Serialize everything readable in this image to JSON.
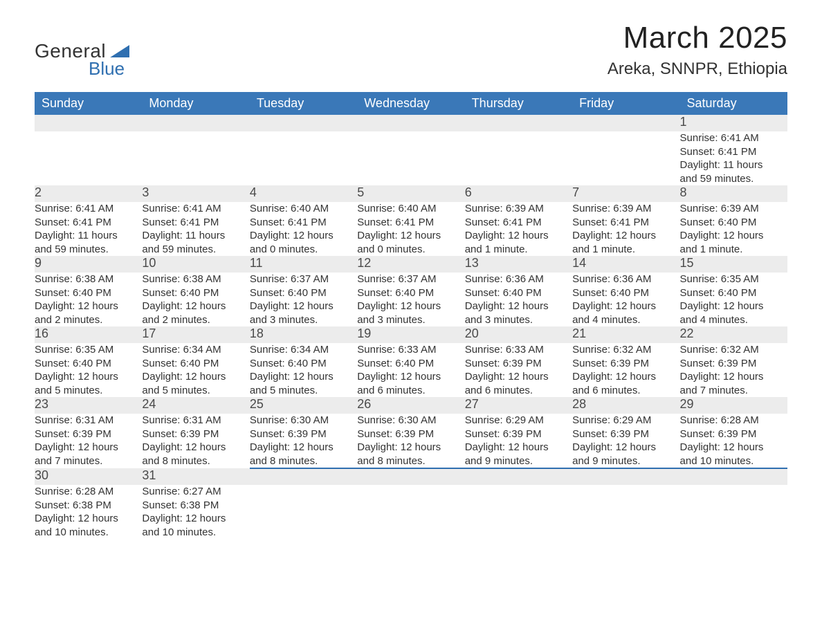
{
  "logo": {
    "text_general": "General",
    "text_blue": "Blue",
    "tri_color": "#2f6fb0"
  },
  "header": {
    "month_title": "March 2025",
    "location": "Areka, SNNPR, Ethiopia"
  },
  "colors": {
    "header_bg": "#3a78b8",
    "header_text": "#ffffff",
    "daynum_bg": "#ececec",
    "row_border": "#2f6fb0",
    "body_text": "#333333",
    "page_bg": "#ffffff"
  },
  "typography": {
    "month_title_fontsize": 44,
    "location_fontsize": 24,
    "weekday_fontsize": 18,
    "daynum_fontsize": 18,
    "detail_fontsize": 15
  },
  "weekdays": [
    "Sunday",
    "Monday",
    "Tuesday",
    "Wednesday",
    "Thursday",
    "Friday",
    "Saturday"
  ],
  "weeks": [
    [
      null,
      null,
      null,
      null,
      null,
      null,
      {
        "day": "1",
        "sunrise": "Sunrise: 6:41 AM",
        "sunset": "Sunset: 6:41 PM",
        "daylight1": "Daylight: 11 hours",
        "daylight2": "and 59 minutes."
      }
    ],
    [
      {
        "day": "2",
        "sunrise": "Sunrise: 6:41 AM",
        "sunset": "Sunset: 6:41 PM",
        "daylight1": "Daylight: 11 hours",
        "daylight2": "and 59 minutes."
      },
      {
        "day": "3",
        "sunrise": "Sunrise: 6:41 AM",
        "sunset": "Sunset: 6:41 PM",
        "daylight1": "Daylight: 11 hours",
        "daylight2": "and 59 minutes."
      },
      {
        "day": "4",
        "sunrise": "Sunrise: 6:40 AM",
        "sunset": "Sunset: 6:41 PM",
        "daylight1": "Daylight: 12 hours",
        "daylight2": "and 0 minutes."
      },
      {
        "day": "5",
        "sunrise": "Sunrise: 6:40 AM",
        "sunset": "Sunset: 6:41 PM",
        "daylight1": "Daylight: 12 hours",
        "daylight2": "and 0 minutes."
      },
      {
        "day": "6",
        "sunrise": "Sunrise: 6:39 AM",
        "sunset": "Sunset: 6:41 PM",
        "daylight1": "Daylight: 12 hours",
        "daylight2": "and 1 minute."
      },
      {
        "day": "7",
        "sunrise": "Sunrise: 6:39 AM",
        "sunset": "Sunset: 6:41 PM",
        "daylight1": "Daylight: 12 hours",
        "daylight2": "and 1 minute."
      },
      {
        "day": "8",
        "sunrise": "Sunrise: 6:39 AM",
        "sunset": "Sunset: 6:40 PM",
        "daylight1": "Daylight: 12 hours",
        "daylight2": "and 1 minute."
      }
    ],
    [
      {
        "day": "9",
        "sunrise": "Sunrise: 6:38 AM",
        "sunset": "Sunset: 6:40 PM",
        "daylight1": "Daylight: 12 hours",
        "daylight2": "and 2 minutes."
      },
      {
        "day": "10",
        "sunrise": "Sunrise: 6:38 AM",
        "sunset": "Sunset: 6:40 PM",
        "daylight1": "Daylight: 12 hours",
        "daylight2": "and 2 minutes."
      },
      {
        "day": "11",
        "sunrise": "Sunrise: 6:37 AM",
        "sunset": "Sunset: 6:40 PM",
        "daylight1": "Daylight: 12 hours",
        "daylight2": "and 3 minutes."
      },
      {
        "day": "12",
        "sunrise": "Sunrise: 6:37 AM",
        "sunset": "Sunset: 6:40 PM",
        "daylight1": "Daylight: 12 hours",
        "daylight2": "and 3 minutes."
      },
      {
        "day": "13",
        "sunrise": "Sunrise: 6:36 AM",
        "sunset": "Sunset: 6:40 PM",
        "daylight1": "Daylight: 12 hours",
        "daylight2": "and 3 minutes."
      },
      {
        "day": "14",
        "sunrise": "Sunrise: 6:36 AM",
        "sunset": "Sunset: 6:40 PM",
        "daylight1": "Daylight: 12 hours",
        "daylight2": "and 4 minutes."
      },
      {
        "day": "15",
        "sunrise": "Sunrise: 6:35 AM",
        "sunset": "Sunset: 6:40 PM",
        "daylight1": "Daylight: 12 hours",
        "daylight2": "and 4 minutes."
      }
    ],
    [
      {
        "day": "16",
        "sunrise": "Sunrise: 6:35 AM",
        "sunset": "Sunset: 6:40 PM",
        "daylight1": "Daylight: 12 hours",
        "daylight2": "and 5 minutes."
      },
      {
        "day": "17",
        "sunrise": "Sunrise: 6:34 AM",
        "sunset": "Sunset: 6:40 PM",
        "daylight1": "Daylight: 12 hours",
        "daylight2": "and 5 minutes."
      },
      {
        "day": "18",
        "sunrise": "Sunrise: 6:34 AM",
        "sunset": "Sunset: 6:40 PM",
        "daylight1": "Daylight: 12 hours",
        "daylight2": "and 5 minutes."
      },
      {
        "day": "19",
        "sunrise": "Sunrise: 6:33 AM",
        "sunset": "Sunset: 6:40 PM",
        "daylight1": "Daylight: 12 hours",
        "daylight2": "and 6 minutes."
      },
      {
        "day": "20",
        "sunrise": "Sunrise: 6:33 AM",
        "sunset": "Sunset: 6:39 PM",
        "daylight1": "Daylight: 12 hours",
        "daylight2": "and 6 minutes."
      },
      {
        "day": "21",
        "sunrise": "Sunrise: 6:32 AM",
        "sunset": "Sunset: 6:39 PM",
        "daylight1": "Daylight: 12 hours",
        "daylight2": "and 6 minutes."
      },
      {
        "day": "22",
        "sunrise": "Sunrise: 6:32 AM",
        "sunset": "Sunset: 6:39 PM",
        "daylight1": "Daylight: 12 hours",
        "daylight2": "and 7 minutes."
      }
    ],
    [
      {
        "day": "23",
        "sunrise": "Sunrise: 6:31 AM",
        "sunset": "Sunset: 6:39 PM",
        "daylight1": "Daylight: 12 hours",
        "daylight2": "and 7 minutes."
      },
      {
        "day": "24",
        "sunrise": "Sunrise: 6:31 AM",
        "sunset": "Sunset: 6:39 PM",
        "daylight1": "Daylight: 12 hours",
        "daylight2": "and 8 minutes."
      },
      {
        "day": "25",
        "sunrise": "Sunrise: 6:30 AM",
        "sunset": "Sunset: 6:39 PM",
        "daylight1": "Daylight: 12 hours",
        "daylight2": "and 8 minutes."
      },
      {
        "day": "26",
        "sunrise": "Sunrise: 6:30 AM",
        "sunset": "Sunset: 6:39 PM",
        "daylight1": "Daylight: 12 hours",
        "daylight2": "and 8 minutes."
      },
      {
        "day": "27",
        "sunrise": "Sunrise: 6:29 AM",
        "sunset": "Sunset: 6:39 PM",
        "daylight1": "Daylight: 12 hours",
        "daylight2": "and 9 minutes."
      },
      {
        "day": "28",
        "sunrise": "Sunrise: 6:29 AM",
        "sunset": "Sunset: 6:39 PM",
        "daylight1": "Daylight: 12 hours",
        "daylight2": "and 9 minutes."
      },
      {
        "day": "29",
        "sunrise": "Sunrise: 6:28 AM",
        "sunset": "Sunset: 6:39 PM",
        "daylight1": "Daylight: 12 hours",
        "daylight2": "and 10 minutes."
      }
    ],
    [
      {
        "day": "30",
        "sunrise": "Sunrise: 6:28 AM",
        "sunset": "Sunset: 6:38 PM",
        "daylight1": "Daylight: 12 hours",
        "daylight2": "and 10 minutes."
      },
      {
        "day": "31",
        "sunrise": "Sunrise: 6:27 AM",
        "sunset": "Sunset: 6:38 PM",
        "daylight1": "Daylight: 12 hours",
        "daylight2": "and 10 minutes."
      },
      null,
      null,
      null,
      null,
      null
    ]
  ]
}
